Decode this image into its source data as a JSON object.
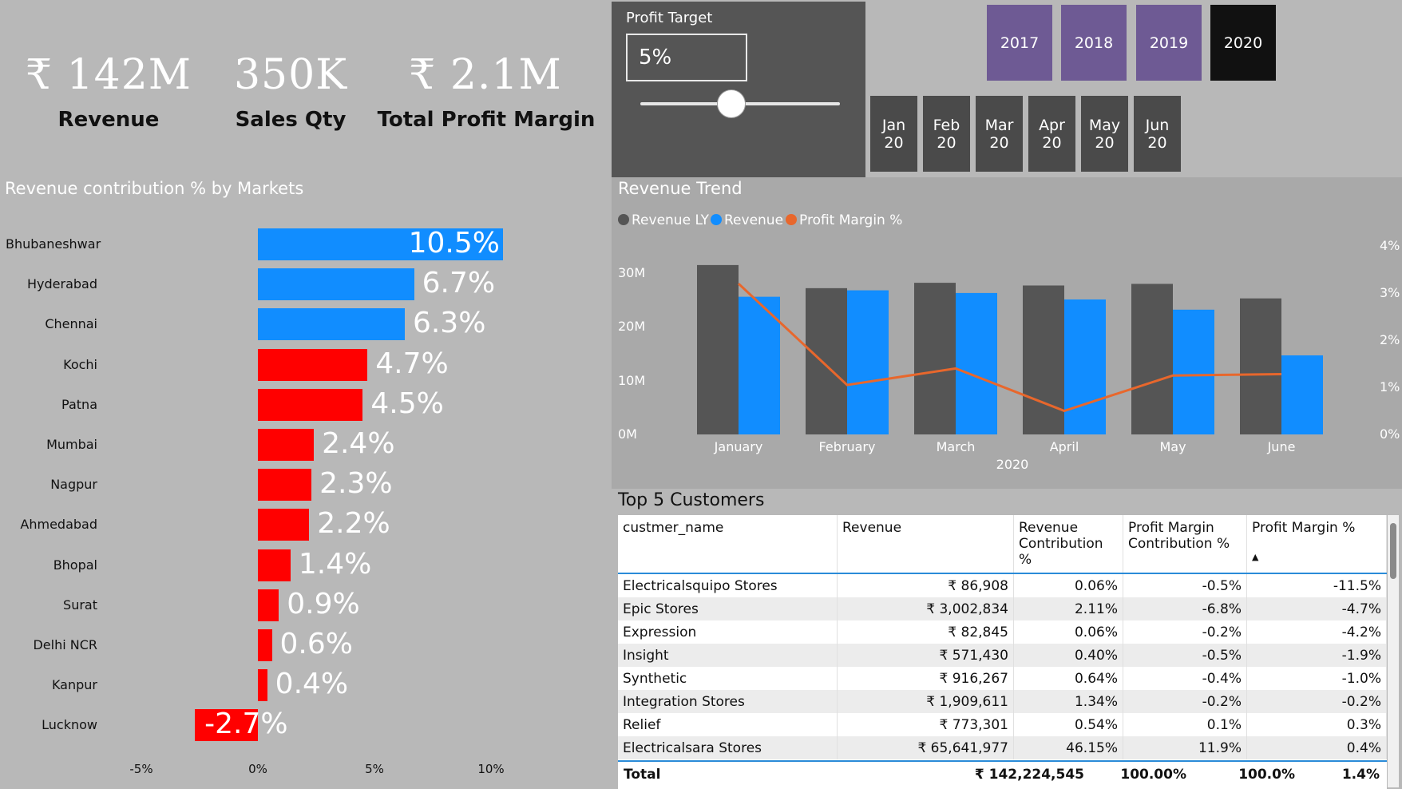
{
  "kpis": [
    {
      "value": "₹ 142M",
      "label": "Revenue"
    },
    {
      "value": "350K",
      "label": "Sales Qty"
    },
    {
      "value": "₹ 2.1M",
      "label": "Total Profit Margin"
    }
  ],
  "profit_target": {
    "title": "Profit Target",
    "value": "5%",
    "slider_fraction": 0.45
  },
  "years": [
    "2017",
    "2018",
    "2019",
    "2020"
  ],
  "active_year": "2020",
  "months": [
    "Jan 20",
    "Feb 20",
    "Mar 20",
    "Apr 20",
    "May 20",
    "Jun 20"
  ],
  "markets_chart_title": "Revenue contribution % by Markets",
  "trend_chart_title": "Revenue Trend",
  "customers_title": "Top 5 Customers",
  "colors": {
    "positive": "#118dff",
    "negative": "#ff0000",
    "ly": "#555555",
    "revenue": "#118dff",
    "margin": "#e8672c"
  },
  "chart_data": [
    {
      "type": "bar",
      "orientation": "horizontal",
      "title": "Revenue contribution % by Markets",
      "categories": [
        "Bhubaneshwar",
        "Hyderabad",
        "Chennai",
        "Kochi",
        "Patna",
        "Mumbai",
        "Nagpur",
        "Ahmedabad",
        "Bhopal",
        "Surat",
        "Delhi NCR",
        "Kanpur",
        "Lucknow"
      ],
      "values": [
        10.5,
        6.7,
        6.3,
        4.7,
        4.5,
        2.4,
        2.3,
        2.2,
        1.4,
        0.9,
        0.6,
        0.4,
        -2.7
      ],
      "labels": [
        "10.5%",
        "6.7%",
        "6.3%",
        "4.7%",
        "4.5%",
        "2.4%",
        "2.3%",
        "2.2%",
        "1.4%",
        "0.9%",
        "0.6%",
        "0.4%",
        "-2.7%"
      ],
      "xticks": [
        "-5%",
        "0%",
        "5%",
        "10%"
      ],
      "xlim": [
        -5,
        10
      ]
    },
    {
      "type": "bar",
      "title": "Revenue Trend",
      "categories": [
        "January",
        "February",
        "March",
        "April",
        "May",
        "June"
      ],
      "xlabel": "2020",
      "series": [
        {
          "name": "Revenue LY",
          "values": [
            31.5,
            27.2,
            28.2,
            27.7,
            28,
            25.3
          ]
        },
        {
          "name": "Revenue",
          "values": [
            25.6,
            26.8,
            26.3,
            25.1,
            23.2,
            14.7
          ]
        },
        {
          "name": "Profit Margin %",
          "axis": "secondary",
          "values": [
            3.2,
            1.05,
            1.4,
            0.5,
            1.25,
            1.28
          ]
        }
      ],
      "legend": [
        "Revenue LY",
        "Revenue",
        "Profit Margin %"
      ],
      "yticks": [
        "0M",
        "10M",
        "20M",
        "30M"
      ],
      "ylim": [
        0,
        30
      ],
      "y2ticks": [
        "0%",
        "1%",
        "2%",
        "3%",
        "4%"
      ],
      "y2lim": [
        0,
        4
      ]
    }
  ],
  "table": {
    "columns": [
      "custmer_name",
      "Revenue",
      "Revenue Contribution %",
      "Profit Margin Contribution %",
      "Profit Margin %"
    ],
    "rows": [
      [
        "Electricalsquipo Stores",
        "₹ 86,908",
        "0.06%",
        "-0.5%",
        "-11.5%"
      ],
      [
        "Epic Stores",
        "₹ 3,002,834",
        "2.11%",
        "-6.8%",
        "-4.7%"
      ],
      [
        "Expression",
        "₹ 82,845",
        "0.06%",
        "-0.2%",
        "-4.2%"
      ],
      [
        "Insight",
        "₹ 571,430",
        "0.40%",
        "-0.5%",
        "-1.9%"
      ],
      [
        "Synthetic",
        "₹ 916,267",
        "0.64%",
        "-0.4%",
        "-1.0%"
      ],
      [
        "Integration Stores",
        "₹ 1,909,611",
        "1.34%",
        "-0.2%",
        "-0.2%"
      ],
      [
        "Relief",
        "₹ 773,301",
        "0.54%",
        "0.1%",
        "0.3%"
      ],
      [
        "Electricalsara Stores",
        "₹ 65,641,977",
        "46.15%",
        "11.9%",
        "0.4%"
      ]
    ],
    "total": [
      "Total",
      "₹ 142,224,545",
      "100.00%",
      "100.0%",
      "1.4%"
    ]
  }
}
